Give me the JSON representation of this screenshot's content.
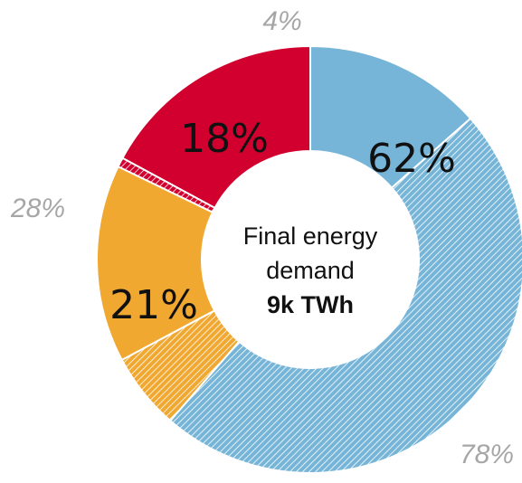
{
  "chart_data": {
    "type": "pie",
    "style": "donut",
    "center_label": {
      "line1": "Final energy",
      "line2": "demand",
      "total": "9k TWh"
    },
    "slices": [
      {
        "value": 62,
        "label": "62%",
        "color": "#76b5d8",
        "hatched_share": 78,
        "hatched_label": "78%"
      },
      {
        "value": 21,
        "label": "21%",
        "color": "#f0a830",
        "hatched_share": 28,
        "hatched_label": "28%"
      },
      {
        "value": 18,
        "label": "18%",
        "color": "#d1002f",
        "hatched_share": 4,
        "hatched_label": "4%"
      }
    ]
  }
}
